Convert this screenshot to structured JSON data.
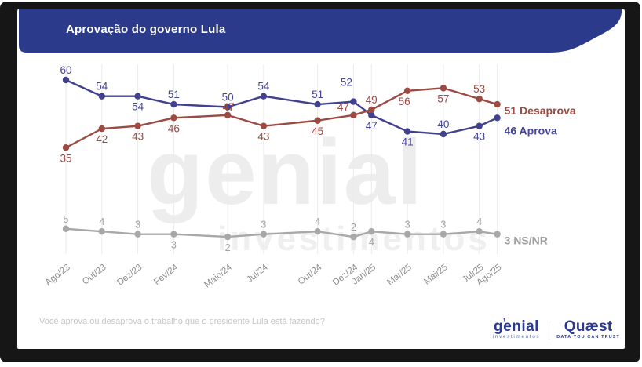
{
  "title": "Aprovação do governo Lula",
  "chart_data": {
    "type": "line",
    "x": [
      "Ago/23",
      "Out/23",
      "Dez/23",
      "Fev/24",
      "Maio/24",
      "Jul/24",
      "Out/24",
      "Dez/24",
      "Jan/25",
      "Mar/25",
      "Mai/25",
      "Jul/25",
      "Ago/25"
    ],
    "month_offsets": [
      0,
      2,
      4,
      6,
      9,
      11,
      14,
      16,
      17,
      19,
      21,
      23,
      24
    ],
    "series": [
      {
        "name": "Aprova",
        "color": "#41418f",
        "label_color": "#44449a",
        "values": [
          60,
          54,
          54,
          51,
          50,
          54,
          51,
          52,
          47,
          41,
          40,
          43,
          46
        ],
        "end_label": "46 Aprova"
      },
      {
        "name": "Desaprova",
        "color": "#9c4a42",
        "label_color": "#9c4a42",
        "values": [
          35,
          42,
          43,
          46,
          47,
          43,
          45,
          47,
          49,
          56,
          57,
          53,
          51
        ],
        "end_label": "51 Desaprova"
      },
      {
        "name": "NS/NR",
        "color": "#a8a8a8",
        "label_color": "#a0a0a0",
        "values": [
          5,
          4,
          3,
          3,
          2,
          3,
          4,
          2,
          4,
          3,
          3,
          4,
          3
        ],
        "end_label": "3 NS/NR"
      }
    ],
    "ylim": [
      0,
      65
    ],
    "grid": "vertical-only",
    "legend_position": "right-of-last-point"
  },
  "footer": {
    "question": "Você aprova ou desaprova o trabalho que o presidente Lula está fazendo?"
  },
  "watermark": {
    "line1": "genial",
    "line2": "investimentos"
  },
  "logos": {
    "genial": {
      "name": "genial",
      "accent": "ʼ",
      "subtitle": "investimentos"
    },
    "quaest": {
      "name": "Quæst",
      "subtitle": "DATA YOU CAN TRUST"
    }
  },
  "colors": {
    "header_band": "#2c3a8c",
    "frame": "#161616"
  }
}
